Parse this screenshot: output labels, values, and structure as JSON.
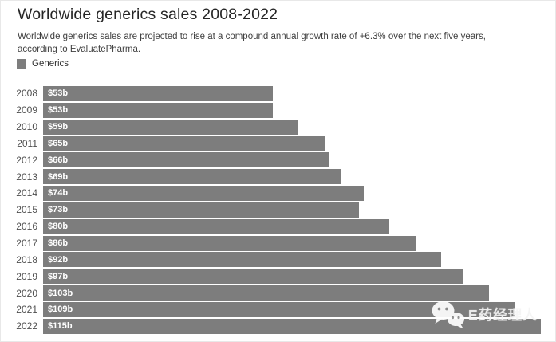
{
  "header": {
    "title": "Worldwide generics sales 2008-2022",
    "subtitle": "Worldwide generics sales are projected to rise at a compound annual growth rate of +6.3% over the next five years, according to EvaluatePharma."
  },
  "legend": {
    "label": "Generics",
    "color": "#7d7d7d"
  },
  "chart_data": {
    "type": "bar",
    "orientation": "horizontal",
    "title": "Worldwide generics sales 2008-2022",
    "categories": [
      "2008",
      "2009",
      "2010",
      "2011",
      "2012",
      "2013",
      "2014",
      "2015",
      "2016",
      "2017",
      "2018",
      "2019",
      "2020",
      "2021",
      "2022"
    ],
    "series": [
      {
        "name": "Generics",
        "values": [
          53,
          53,
          59,
          65,
          66,
          69,
          74,
          73,
          80,
          86,
          92,
          97,
          103,
          109,
          115
        ],
        "labels": [
          "$53b",
          "$53b",
          "$59b",
          "$65b",
          "$66b",
          "$69b",
          "$74b",
          "$73b",
          "$80b",
          "$86b",
          "$92b",
          "$97b",
          "$103b",
          "$109b",
          "$115b"
        ]
      }
    ],
    "xlim": [
      0,
      117
    ],
    "bar_color": "#7d7d7d",
    "value_label_color": "#ffffff",
    "grid": false,
    "legend_position": "top-left"
  },
  "watermark": {
    "text": "E药经理人",
    "icon": "wechat-icon"
  }
}
